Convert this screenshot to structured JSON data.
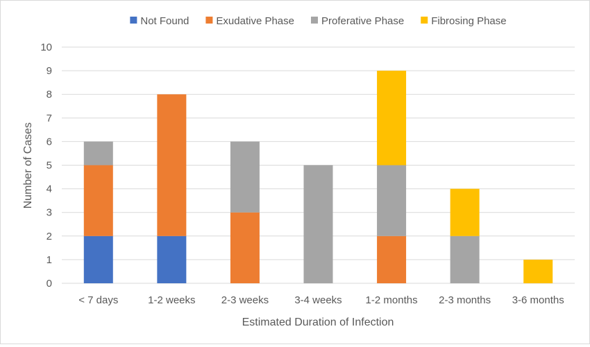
{
  "chart_data": {
    "type": "bar",
    "stacked": true,
    "title": "",
    "xlabel": "Estimated Duration of Infection",
    "ylabel": "Number of Cases",
    "ylim": [
      0,
      10
    ],
    "yticks": [
      "0",
      "1",
      "2",
      "3",
      "4",
      "5",
      "6",
      "7",
      "8",
      "9",
      "10"
    ],
    "grid": true,
    "legend_position": "top",
    "categories": [
      "< 7 days",
      "1-2 weeks",
      "2-3 weeks",
      "3-4 weeks",
      "1-2 months",
      "2-3 months",
      "3-6 months"
    ],
    "series": [
      {
        "name": "Not Found",
        "color": "#4472c4",
        "values": [
          2,
          2,
          0,
          0,
          0,
          0,
          0
        ]
      },
      {
        "name": "Exudative Phase",
        "color": "#ed7d31",
        "values": [
          3,
          6,
          3,
          0,
          2,
          0,
          0
        ]
      },
      {
        "name": "Proferative Phase",
        "color": "#a5a5a5",
        "values": [
          1,
          0,
          3,
          5,
          3,
          2,
          0
        ]
      },
      {
        "name": "Fibrosing Phase",
        "color": "#ffc000",
        "values": [
          0,
          0,
          0,
          0,
          4,
          2,
          1
        ]
      }
    ]
  }
}
